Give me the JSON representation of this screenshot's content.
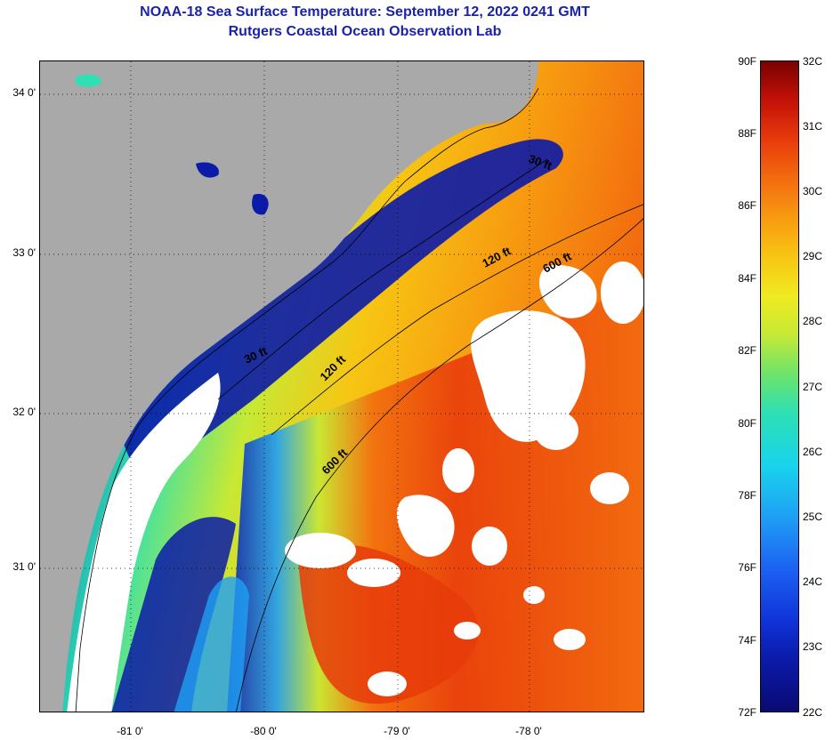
{
  "title": {
    "line1": "NOAA-18 Sea Surface Temperature:  September 12, 2022 0241 GMT",
    "line2": "Rutgers Coastal Ocean Observation Lab"
  },
  "map": {
    "lat_labels": [
      "34 0'",
      "33 0'",
      "32 0'",
      "31 0'"
    ],
    "lon_labels": [
      "-81 0'",
      "-80 0'",
      "-79 0'",
      "-78 0'"
    ],
    "contour_labels": [
      "30 ft",
      "120 ft",
      "600 ft",
      "30 ft",
      "120 ft",
      "600 ft"
    ],
    "colors": {
      "land": "#a9a9a9",
      "cloud": "#ffffff",
      "sst_cold": "#0b1aa8",
      "sst_mid": "#f0ea20",
      "sst_warm": "#f26b0f",
      "sst_hot": "#e83b0b"
    }
  },
  "colorbar": {
    "fahrenheit_labels": [
      "90F",
      "88F",
      "86F",
      "84F",
      "82F",
      "80F",
      "78F",
      "76F",
      "74F",
      "72F"
    ],
    "celsius_labels": [
      "32C",
      "31C",
      "30C",
      "29C",
      "28C",
      "27C",
      "26C",
      "25C",
      "24C",
      "23C",
      "22C"
    ],
    "range_f": [
      72,
      90
    ],
    "range_c": [
      22,
      32
    ]
  }
}
